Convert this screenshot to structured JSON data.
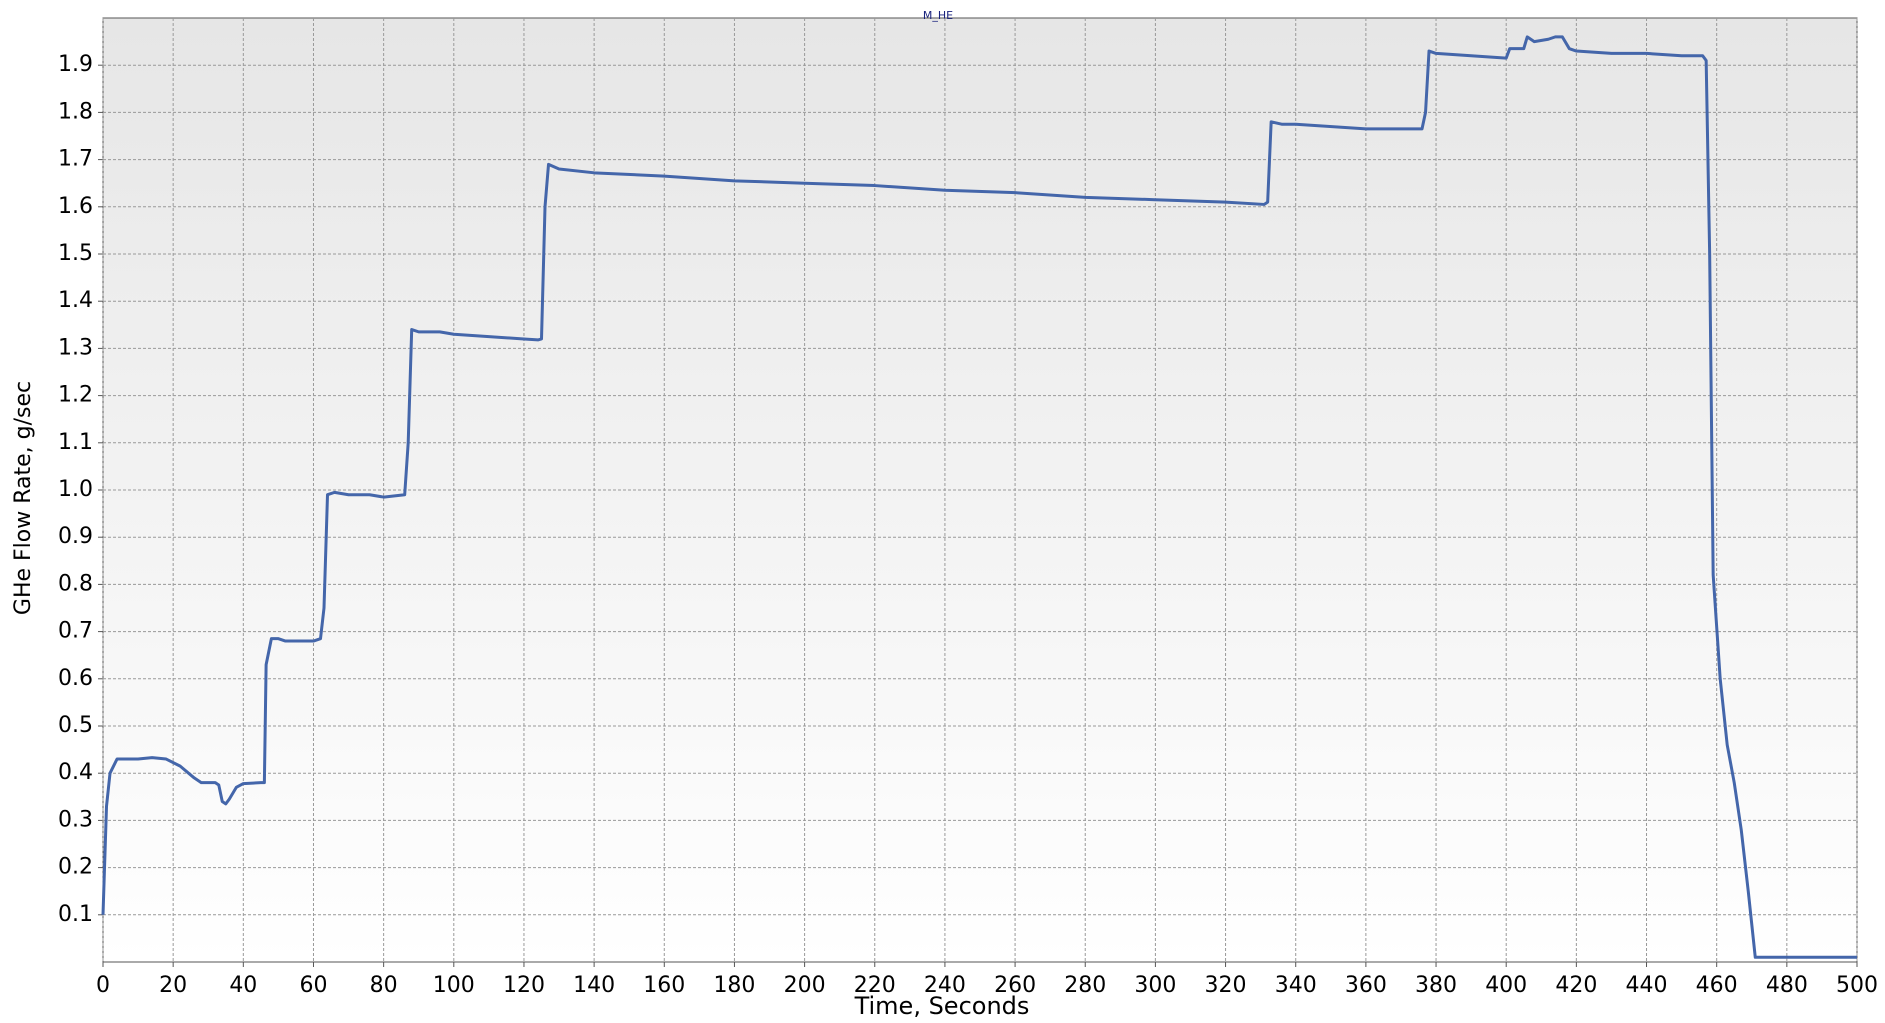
{
  "chart_data": {
    "type": "line",
    "title": "M_HE",
    "xlabel": "Time, Seconds",
    "ylabel": "GHe Flow Rate, g/sec",
    "color": "#4466aa",
    "grid": true,
    "xlim": [
      0,
      500
    ],
    "ylim": [
      0,
      2
    ],
    "xticks": [
      0,
      20,
      40,
      60,
      80,
      100,
      120,
      140,
      160,
      180,
      200,
      220,
      240,
      260,
      280,
      300,
      320,
      340,
      360,
      380,
      400,
      420,
      440,
      460,
      480,
      500
    ],
    "yticks": [
      0.1,
      0.2,
      0.3,
      0.4,
      0.5,
      0.6,
      0.7,
      0.8,
      0.9,
      {
        "value": 1,
        "label": "1.0"
      },
      1.1,
      1.2,
      1.3,
      1.4,
      1.5,
      1.6,
      1.7,
      1.8,
      1.9
    ],
    "x": [
      0,
      1,
      2,
      4,
      6,
      10,
      14,
      18,
      22,
      26,
      28,
      32,
      33,
      34,
      35,
      36,
      38,
      40,
      45,
      46,
      46.5,
      48,
      50,
      52,
      56,
      60,
      62,
      63,
      64,
      66,
      70,
      76,
      80,
      86,
      87,
      88,
      90,
      96,
      100,
      110,
      120,
      124,
      125,
      126,
      127,
      130,
      140,
      160,
      180,
      200,
      220,
      240,
      260,
      280,
      300,
      320,
      331,
      332,
      333,
      336,
      340,
      360,
      376,
      377,
      378,
      380,
      390,
      400,
      401,
      405,
      406,
      408,
      412,
      414,
      416,
      418,
      420,
      430,
      440,
      450,
      456,
      457,
      458,
      459,
      461,
      463,
      465,
      467,
      469,
      471,
      480,
      500
    ],
    "values": [
      0.1,
      0.33,
      0.4,
      0.43,
      0.43,
      0.43,
      0.433,
      0.43,
      0.415,
      0.39,
      0.38,
      0.38,
      0.375,
      0.34,
      0.335,
      0.345,
      0.37,
      0.378,
      0.38,
      0.38,
      0.63,
      0.685,
      0.685,
      0.68,
      0.68,
      0.68,
      0.685,
      0.75,
      0.99,
      0.995,
      0.99,
      0.99,
      0.985,
      0.99,
      1.1,
      1.34,
      1.335,
      1.335,
      1.33,
      1.325,
      1.32,
      1.318,
      1.32,
      1.6,
      1.69,
      1.68,
      1.672,
      1.665,
      1.655,
      1.65,
      1.645,
      1.635,
      1.63,
      1.62,
      1.615,
      1.61,
      1.605,
      1.61,
      1.78,
      1.775,
      1.775,
      1.765,
      1.765,
      1.8,
      1.93,
      1.925,
      1.92,
      1.915,
      1.935,
      1.935,
      1.96,
      1.95,
      1.955,
      1.96,
      1.96,
      1.935,
      1.93,
      1.925,
      1.925,
      1.92,
      1.92,
      1.91,
      1.5,
      0.82,
      0.6,
      0.46,
      0.38,
      0.28,
      0.15,
      0.01,
      0.01,
      0.01
    ]
  }
}
